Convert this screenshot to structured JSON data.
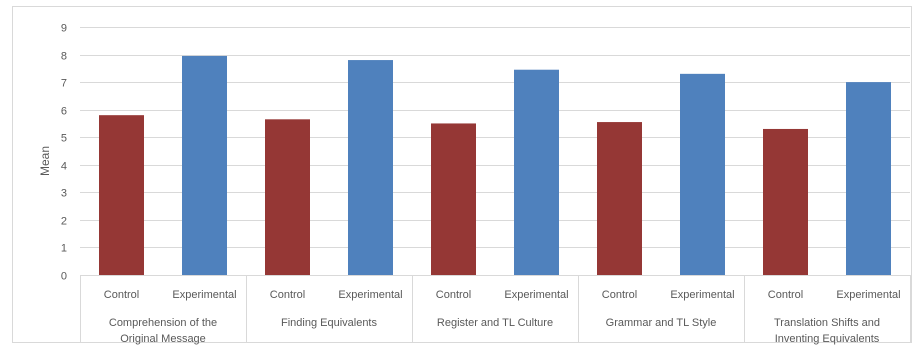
{
  "chart_data": {
    "type": "bar",
    "title": "",
    "xlabel": "",
    "ylabel": "Mean",
    "ylim": [
      0,
      9
    ],
    "yticks": [
      "0",
      "1",
      "2",
      "3",
      "4",
      "5",
      "6",
      "7",
      "8",
      "9"
    ],
    "grid": true,
    "groups": [
      {
        "label_lines": [
          "Comprehension of the",
          "Original Message"
        ],
        "bars": [
          {
            "label": "Control",
            "value": 5.8
          },
          {
            "label": "Experimental",
            "value": 7.95
          }
        ]
      },
      {
        "label_lines": [
          "Finding Equivalents"
        ],
        "bars": [
          {
            "label": "Control",
            "value": 5.65
          },
          {
            "label": "Experimental",
            "value": 7.8
          }
        ]
      },
      {
        "label_lines": [
          "Register and TL Culture"
        ],
        "bars": [
          {
            "label": "Control",
            "value": 5.5
          },
          {
            "label": "Experimental",
            "value": 7.45
          }
        ]
      },
      {
        "label_lines": [
          "Grammar and TL Style"
        ],
        "bars": [
          {
            "label": "Control",
            "value": 5.55
          },
          {
            "label": "Experimental",
            "value": 7.3
          }
        ]
      },
      {
        "label_lines": [
          "Translation Shifts and",
          "Inventing Equivalents"
        ],
        "bars": [
          {
            "label": "Control",
            "value": 5.3
          },
          {
            "label": "Experimental",
            "value": 7.0
          }
        ]
      }
    ],
    "colors": {
      "Control": "#953735",
      "Experimental": "#4f81bd",
      "grid": "#d9d9d9",
      "frame": "#d9d9d9"
    }
  }
}
